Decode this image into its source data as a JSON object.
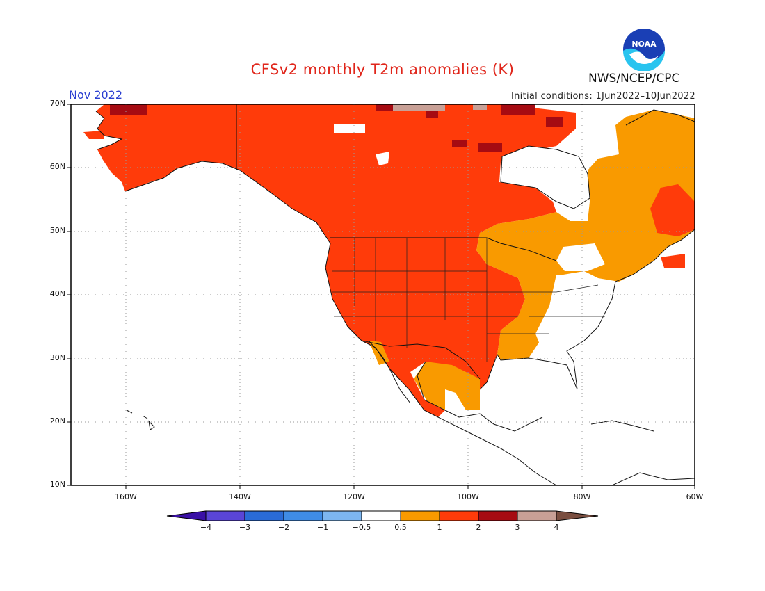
{
  "header": {
    "title": "CFSv2 monthly T2m anomalies (K)",
    "month": "Nov 2022",
    "initial_conditions": "Initial conditions: 1Jun2022–10Jun2022",
    "agency": "NWS/NCEP/CPC",
    "logo_text": "NOAA"
  },
  "axes": {
    "lat_labels": [
      "70N",
      "60N",
      "50N",
      "40N",
      "30N",
      "20N",
      "10N"
    ],
    "lon_labels": [
      "160W",
      "140W",
      "120W",
      "100W",
      "80W",
      "60W"
    ]
  },
  "colorbar": {
    "labels": [
      "−4",
      "−3",
      "−2",
      "−1",
      "−0.5",
      "0.5",
      "1",
      "2",
      "3",
      "4"
    ],
    "colors": [
      "#3a10a6",
      "#5a45d6",
      "#2a6bd6",
      "#3f8ce6",
      "#7db6f0",
      "#ffffff",
      "#f99a00",
      "#ff3b0a",
      "#a60b12",
      "#c8a096",
      "#7a4e40"
    ]
  },
  "map_colors": {
    "plus_0_5_to_1": "#f99a00",
    "plus_1_to_2": "#ff3b0a",
    "plus_2_to_3": "#a60b12",
    "plus_3_to_4": "#c8a096"
  }
}
